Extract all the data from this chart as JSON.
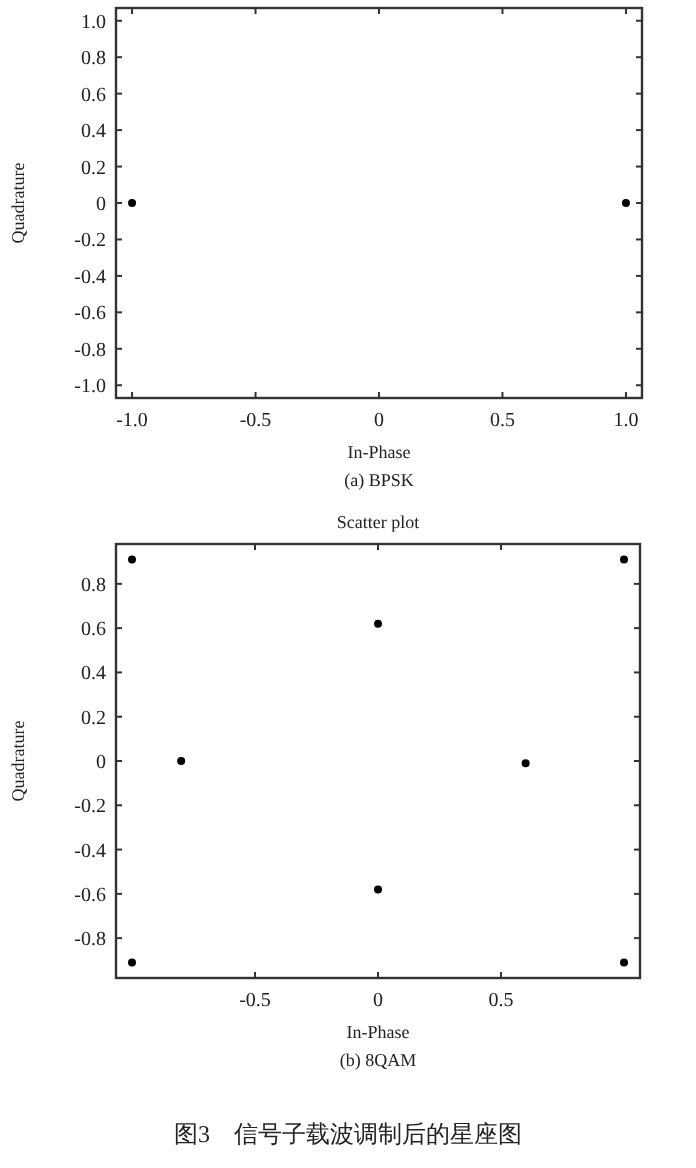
{
  "chart_data": [
    {
      "type": "scatter",
      "xlabel": "In-Phase",
      "ylabel": "Quadrature",
      "annotations": [
        "(a)  BPSK"
      ],
      "marker": "circle",
      "series": [
        {
          "color": "#000000",
          "x": [
            -1,
            1
          ],
          "values": [
            0,
            0
          ]
        }
      ],
      "xlim": [
        -1.065,
        1.065
      ],
      "ylim": [
        -1.07,
        1.07
      ],
      "xticks": [
        {
          "value": -1,
          "label": "-1.0"
        },
        -0.5,
        0,
        0.5,
        {
          "value": 1,
          "label": "1.0"
        }
      ],
      "yticks": [
        {
          "value": -1,
          "label": "-1.0"
        },
        -0.8,
        -0.6,
        -0.4,
        -0.2,
        0,
        0.2,
        0.4,
        0.6,
        0.8,
        {
          "value": 1,
          "label": "1.0"
        }
      ]
    },
    {
      "type": "scatter",
      "title": "Scatter plot",
      "xlabel": "In-Phase",
      "ylabel": "Quadrature",
      "annotations": [
        "(b)  8QAM",
        "图3　信号子载波调制后的星座图"
      ],
      "marker": "circle",
      "series": [
        {
          "color": "#000000",
          "x": [
            -1,
            1,
            0,
            -0.8,
            0.6,
            0,
            -1,
            1
          ],
          "values": [
            0.91,
            0.91,
            0.62,
            0,
            -0.01,
            -0.58,
            -0.91,
            -0.91
          ]
        }
      ],
      "xlim": [
        -1.065,
        1.065
      ],
      "ylim": [
        -0.98,
        0.98
      ],
      "xticks": [
        -0.5,
        0,
        0.5
      ],
      "yticks": [
        -0.8,
        -0.6,
        -0.4,
        -0.2,
        0,
        0.2,
        0.4,
        0.6,
        0.8
      ]
    }
  ]
}
